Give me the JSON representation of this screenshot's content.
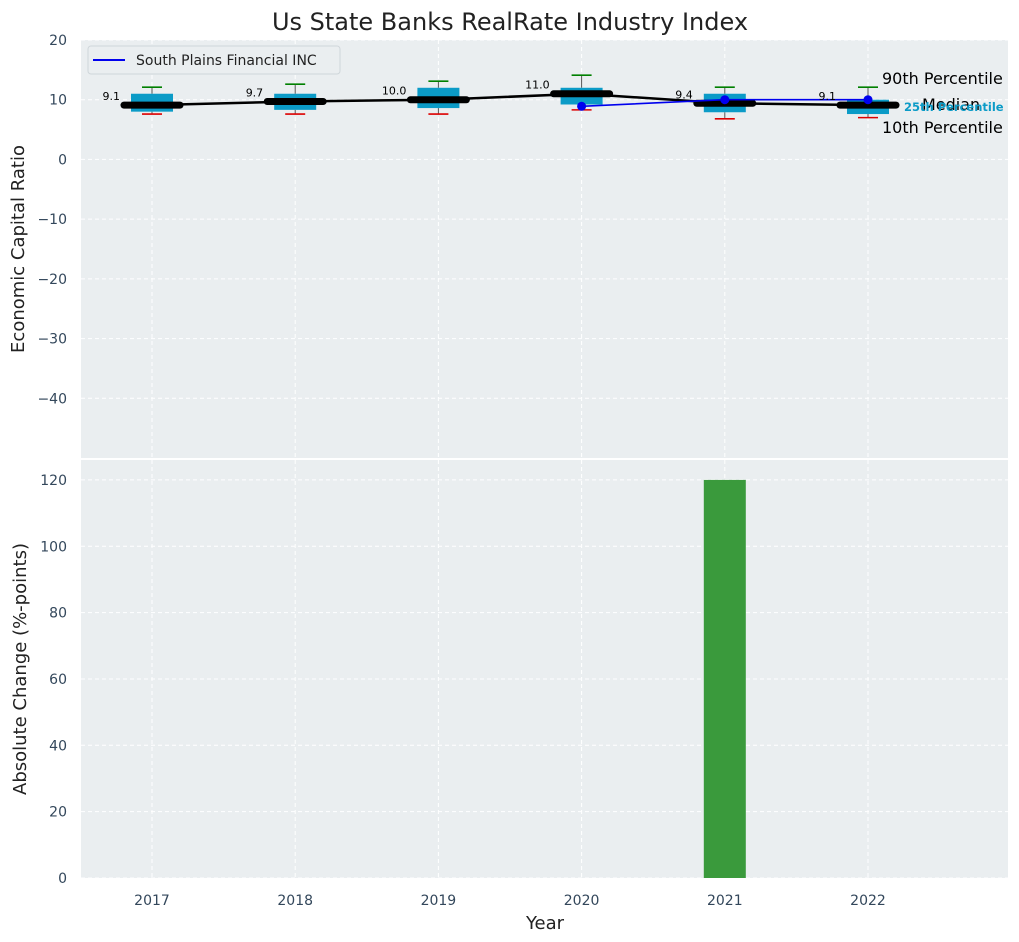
{
  "chart_data": [
    {
      "type": "box",
      "title": "Us State Banks RealRate Industry Index",
      "xlabel": "",
      "ylabel": "Economic Capital Ratio",
      "ylim": [
        -50,
        20
      ],
      "yticks": [
        -40,
        -30,
        -20,
        -10,
        0,
        10,
        20
      ],
      "categories": [
        "2017",
        "2018",
        "2019",
        "2020",
        "2021",
        "2022"
      ],
      "grid": true,
      "legend_position": "top-left",
      "boxes": [
        {
          "year": "2017",
          "p10": 7.6,
          "q1": 8.0,
          "median": 9.1,
          "q3": 11.0,
          "p90": 12.1
        },
        {
          "year": "2018",
          "p10": 7.6,
          "q1": 8.3,
          "median": 9.7,
          "q3": 11.0,
          "p90": 12.6
        },
        {
          "year": "2019",
          "p10": 7.6,
          "q1": 8.6,
          "median": 10.0,
          "q3": 12.0,
          "p90": 13.1
        },
        {
          "year": "2020",
          "p10": 8.3,
          "q1": 9.2,
          "median": 11.0,
          "q3": 12.0,
          "p90": 14.1
        },
        {
          "year": "2021",
          "p10": 6.8,
          "q1": 7.9,
          "median": 9.4,
          "q3": 11.0,
          "p90": 12.1
        },
        {
          "year": "2022",
          "p10": 7.0,
          "q1": 7.6,
          "median": 9.1,
          "q3": 10.0,
          "p90": 12.1
        }
      ],
      "median_labels": [
        "9.1",
        "9.7",
        "10.0",
        "11.0",
        "9.4",
        "9.1"
      ],
      "series": [
        {
          "name": "South Plains Financial INC",
          "color": "#0000ee",
          "x": [
            "2020",
            "2021",
            "2022"
          ],
          "values": [
            8.9,
            10.0,
            10.0
          ]
        }
      ],
      "annotations": {
        "p90": "90th Percentile",
        "median": "Median",
        "p25": "25th Percentile",
        "p10": "10th Percentile"
      },
      "colors": {
        "box": "#0b9bc7",
        "median_line": "#000000",
        "whisker_top": "#008000",
        "whisker_bottom": "#dd0000",
        "plot_bg": "#eaeef0"
      }
    },
    {
      "type": "bar",
      "xlabel": "Year",
      "ylabel": "Absolute Change (%-points)",
      "ylim": [
        0,
        126
      ],
      "yticks": [
        0,
        20,
        40,
        60,
        80,
        100,
        120
      ],
      "categories": [
        "2017",
        "2018",
        "2019",
        "2020",
        "2021",
        "2022"
      ],
      "values": [
        0,
        0,
        0,
        0,
        120,
        0
      ],
      "grid": true,
      "colors": {
        "bar": "#3a9a3c",
        "plot_bg": "#eaeef0"
      }
    }
  ]
}
